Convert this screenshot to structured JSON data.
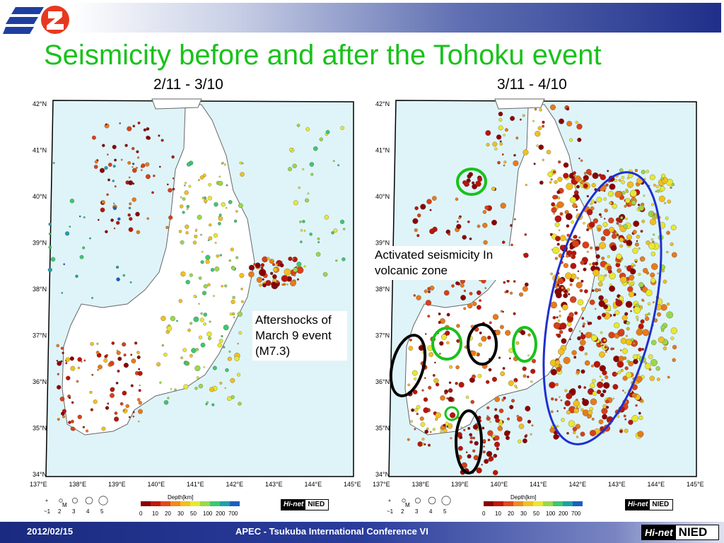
{
  "slide": {
    "title": "Seismicity before and after the Tohoku event",
    "left_period": "2/11 - 3/10",
    "right_period": "3/11 - 4/10"
  },
  "annotations": {
    "aftershocks": "Aftershocks of March 9 event (M7.3)",
    "volcanic": "Activated seismicity In volcanic zone"
  },
  "maps": {
    "lat_labels": [
      "42°N",
      "41°N",
      "40°N",
      "39°N",
      "38°N",
      "37°N",
      "36°N",
      "35°N",
      "34°N"
    ],
    "lon_labels": [
      "137°E",
      "138°E",
      "139°E",
      "140°E",
      "141°E",
      "142°E",
      "143°E",
      "144°E",
      "145°E"
    ],
    "magnitude_legend": {
      "title": "M",
      "values": [
        "~1",
        "2",
        "3",
        "4",
        "5"
      ]
    },
    "depth_legend": {
      "title": "Depth[km]",
      "ticks": [
        "0",
        "10",
        "20",
        "30",
        "50",
        "100",
        "200",
        "700"
      ]
    },
    "brand_left": "Hi-net",
    "brand_right": "NIED"
  },
  "footer": {
    "date": "2012/02/15",
    "conference": "APEC - Tsukuba International Conference VI",
    "logo_left": "Hi-net",
    "logo_right": "NIED"
  },
  "colors": {
    "title": "#18c21b",
    "sea": "#dff4f8",
    "land": "#ffffff",
    "footer": "#1a2a80",
    "circle_green": "#18c21b",
    "circle_black": "#000000",
    "circle_blue": "#1f2fd0"
  }
}
